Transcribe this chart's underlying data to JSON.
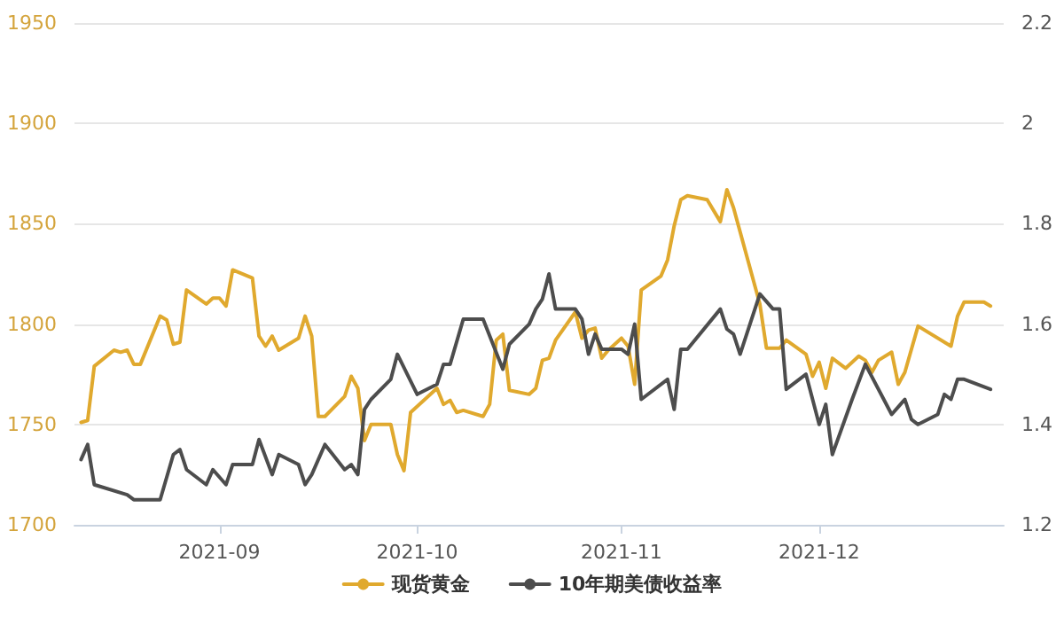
{
  "chart_data": {
    "type": "line",
    "xlim": [
      "2021-08-10",
      "2021-12-29"
    ],
    "xticks": [
      {
        "value": "2021-09-01",
        "label": "2021-09"
      },
      {
        "value": "2021-10-01",
        "label": "2021-10"
      },
      {
        "value": "2021-11-01",
        "label": "2021-11"
      },
      {
        "value": "2021-12-01",
        "label": "2021-12"
      }
    ],
    "ylim": [
      1700,
      1950
    ],
    "yticks": [
      1700,
      1750,
      1800,
      1850,
      1900,
      1950
    ],
    "y2lim": [
      1.2,
      2.2
    ],
    "y2ticks": [
      1.2,
      1.4,
      1.6,
      1.8,
      2,
      2.2
    ],
    "grid": "y",
    "legend": "bottom",
    "marker": "none",
    "line_style": "solid",
    "series": [
      {
        "name": "现货黄金",
        "color": "#e0a92e",
        "x": [
          "2021-08-11",
          "2021-08-12",
          "2021-08-13",
          "2021-08-16",
          "2021-08-17",
          "2021-08-18",
          "2021-08-19",
          "2021-08-20",
          "2021-08-23",
          "2021-08-24",
          "2021-08-25",
          "2021-08-26",
          "2021-08-27",
          "2021-08-30",
          "2021-08-31",
          "2021-09-01",
          "2021-09-02",
          "2021-09-03",
          "2021-09-06",
          "2021-09-07",
          "2021-09-08",
          "2021-09-09",
          "2021-09-10",
          "2021-09-13",
          "2021-09-14",
          "2021-09-15",
          "2021-09-16",
          "2021-09-17",
          "2021-09-20",
          "2021-09-21",
          "2021-09-22",
          "2021-09-23",
          "2021-09-24",
          "2021-09-27",
          "2021-09-28",
          "2021-09-29",
          "2021-09-30",
          "2021-10-04",
          "2021-10-05",
          "2021-10-06",
          "2021-10-07",
          "2021-10-08",
          "2021-10-11",
          "2021-10-12",
          "2021-10-13",
          "2021-10-14",
          "2021-10-15",
          "2021-10-18",
          "2021-10-19",
          "2021-10-20",
          "2021-10-21",
          "2021-10-22",
          "2021-10-25",
          "2021-10-26",
          "2021-10-27",
          "2021-10-28",
          "2021-10-29",
          "2021-10-30",
          "2021-11-01",
          "2021-11-02",
          "2021-11-03",
          "2021-11-04",
          "2021-11-07",
          "2021-11-08",
          "2021-11-09",
          "2021-11-10",
          "2021-11-11",
          "2021-11-14",
          "2021-11-16",
          "2021-11-17",
          "2021-11-18",
          "2021-11-22",
          "2021-11-23",
          "2021-11-25",
          "2021-11-26",
          "2021-11-29",
          "2021-11-30",
          "2021-12-01",
          "2021-12-02",
          "2021-12-03",
          "2021-12-05",
          "2021-12-07",
          "2021-12-08",
          "2021-12-09",
          "2021-12-10",
          "2021-12-12",
          "2021-12-13",
          "2021-12-14",
          "2021-12-16",
          "2021-12-21",
          "2021-12-22",
          "2021-12-23",
          "2021-12-26",
          "2021-12-27"
        ],
        "values": [
          1751,
          1752,
          1779,
          1787,
          1786,
          1787,
          1780,
          1780,
          1804,
          1802,
          1790,
          1791,
          1817,
          1810,
          1813,
          1813,
          1809,
          1827,
          1823,
          1794,
          1789,
          1794,
          1787,
          1793,
          1804,
          1794,
          1754,
          1754,
          1764,
          1774,
          1768,
          1742,
          1750,
          1750,
          1735,
          1727,
          1756,
          1768,
          1760,
          1762,
          1756,
          1757,
          1754,
          1760,
          1792,
          1795,
          1767,
          1765,
          1768,
          1782,
          1783,
          1792,
          1806,
          1793,
          1797,
          1798,
          1783,
          1787,
          1793,
          1789,
          1770,
          1817,
          1824,
          1832,
          1849,
          1862,
          1864,
          1862,
          1851,
          1867,
          1858,
          1810,
          1788,
          1788,
          1792,
          1785,
          1774,
          1781,
          1768,
          1783,
          1778,
          1784,
          1782,
          1776,
          1782,
          1786,
          1770,
          1776,
          1799,
          1789,
          1804,
          1811,
          1811,
          1809
        ]
      },
      {
        "name": "10年期美债收益率",
        "color": "#4d4d4d",
        "axis": "y2",
        "x": [
          "2021-08-11",
          "2021-08-12",
          "2021-08-13",
          "2021-08-18",
          "2021-08-19",
          "2021-08-20",
          "2021-08-23",
          "2021-08-25",
          "2021-08-26",
          "2021-08-27",
          "2021-08-30",
          "2021-08-31",
          "2021-09-02",
          "2021-09-03",
          "2021-09-06",
          "2021-09-07",
          "2021-09-09",
          "2021-09-10",
          "2021-09-13",
          "2021-09-14",
          "2021-09-15",
          "2021-09-17",
          "2021-09-20",
          "2021-09-21",
          "2021-09-22",
          "2021-09-23",
          "2021-09-24",
          "2021-09-27",
          "2021-09-28",
          "2021-10-01",
          "2021-10-04",
          "2021-10-05",
          "2021-10-06",
          "2021-10-08",
          "2021-10-11",
          "2021-10-14",
          "2021-10-15",
          "2021-10-18",
          "2021-10-19",
          "2021-10-20",
          "2021-10-21",
          "2021-10-22",
          "2021-10-25",
          "2021-10-26",
          "2021-10-27",
          "2021-10-28",
          "2021-10-29",
          "2021-11-01",
          "2021-11-02",
          "2021-11-03",
          "2021-11-04",
          "2021-11-08",
          "2021-11-09",
          "2021-11-10",
          "2021-11-11",
          "2021-11-16",
          "2021-11-17",
          "2021-11-18",
          "2021-11-19",
          "2021-11-22",
          "2021-11-24",
          "2021-11-25",
          "2021-11-26",
          "2021-11-29",
          "2021-12-01",
          "2021-12-02",
          "2021-12-03",
          "2021-12-06",
          "2021-12-08",
          "2021-12-12",
          "2021-12-14",
          "2021-12-15",
          "2021-12-16",
          "2021-12-19",
          "2021-12-20",
          "2021-12-21",
          "2021-12-22",
          "2021-12-23",
          "2021-12-27"
        ],
        "values": [
          1.33,
          1.36,
          1.28,
          1.26,
          1.25,
          1.25,
          1.25,
          1.34,
          1.35,
          1.31,
          1.28,
          1.31,
          1.28,
          1.32,
          1.32,
          1.37,
          1.3,
          1.34,
          1.32,
          1.28,
          1.3,
          1.36,
          1.31,
          1.32,
          1.3,
          1.43,
          1.45,
          1.49,
          1.54,
          1.46,
          1.48,
          1.52,
          1.52,
          1.61,
          1.61,
          1.51,
          1.56,
          1.6,
          1.63,
          1.65,
          1.7,
          1.63,
          1.63,
          1.61,
          1.54,
          1.58,
          1.55,
          1.55,
          1.54,
          1.6,
          1.45,
          1.49,
          1.43,
          1.55,
          1.55,
          1.63,
          1.59,
          1.58,
          1.54,
          1.66,
          1.63,
          1.63,
          1.47,
          1.5,
          1.4,
          1.44,
          1.34,
          1.45,
          1.52,
          1.42,
          1.45,
          1.41,
          1.4,
          1.42,
          1.46,
          1.45,
          1.49,
          1.49,
          1.47
        ]
      }
    ]
  }
}
